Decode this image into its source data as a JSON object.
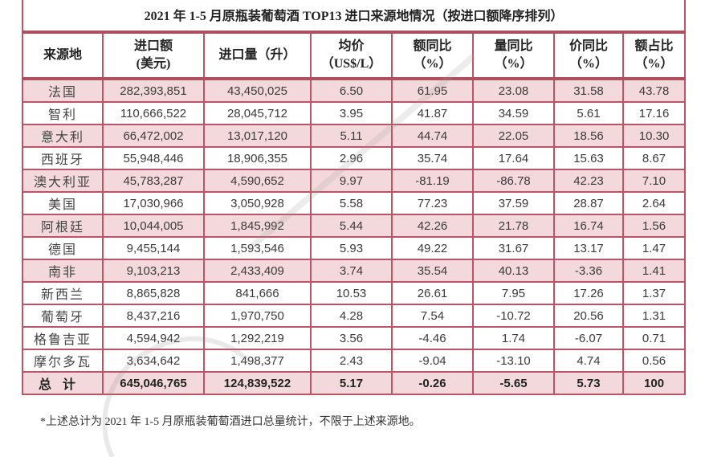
{
  "table": {
    "title": "2021 年 1-5 月原瓶装葡萄酒 TOP13 进口来源地情况（按进口额降序排列）",
    "headers": [
      {
        "line1": "来源地",
        "line2": ""
      },
      {
        "line1": "进口额",
        "line2": "(美元)"
      },
      {
        "line1": "进口量（升）",
        "line2": ""
      },
      {
        "line1": "均价",
        "line2": "（US$/L）"
      },
      {
        "line1": "额同比",
        "line2": "（%）"
      },
      {
        "line1": "量同比",
        "line2": "（%）"
      },
      {
        "line1": "价同比",
        "line2": "（%）"
      },
      {
        "line1": "额占比",
        "line2": "（%）"
      }
    ],
    "rows": [
      {
        "source": "法国",
        "value_usd": "282,393,851",
        "volume_l": "43,450,025",
        "avg_price": "6.50",
        "value_yoy": "61.95",
        "volume_yoy": "23.08",
        "price_yoy": "31.58",
        "value_share": "43.78",
        "shade": "pink"
      },
      {
        "source": "智利",
        "value_usd": "110,666,522",
        "volume_l": "28,045,712",
        "avg_price": "3.95",
        "value_yoy": "41.87",
        "volume_yoy": "34.59",
        "price_yoy": "5.61",
        "value_share": "17.16",
        "shade": "white"
      },
      {
        "source": "意大利",
        "value_usd": "66,472,002",
        "volume_l": "13,017,120",
        "avg_price": "5.11",
        "value_yoy": "44.74",
        "volume_yoy": "22.05",
        "price_yoy": "18.56",
        "value_share": "10.30",
        "shade": "pink"
      },
      {
        "source": "西班牙",
        "value_usd": "55,948,446",
        "volume_l": "18,906,355",
        "avg_price": "2.96",
        "value_yoy": "35.74",
        "volume_yoy": "17.64",
        "price_yoy": "15.63",
        "value_share": "8.67",
        "shade": "white"
      },
      {
        "source": "澳大利亚",
        "value_usd": "45,783,287",
        "volume_l": "4,590,652",
        "avg_price": "9.97",
        "value_yoy": "-81.19",
        "volume_yoy": "-86.78",
        "price_yoy": "42.23",
        "value_share": "7.10",
        "shade": "pink"
      },
      {
        "source": "美国",
        "value_usd": "17,030,966",
        "volume_l": "3,050,928",
        "avg_price": "5.58",
        "value_yoy": "77.23",
        "volume_yoy": "37.59",
        "price_yoy": "28.87",
        "value_share": "2.64",
        "shade": "white"
      },
      {
        "source": "阿根廷",
        "value_usd": "10,044,005",
        "volume_l": "1,845,992",
        "avg_price": "5.44",
        "value_yoy": "42.26",
        "volume_yoy": "21.78",
        "price_yoy": "16.74",
        "value_share": "1.56",
        "shade": "pink"
      },
      {
        "source": "德国",
        "value_usd": "9,455,144",
        "volume_l": "1,593,546",
        "avg_price": "5.93",
        "value_yoy": "49.22",
        "volume_yoy": "31.67",
        "price_yoy": "13.17",
        "value_share": "1.47",
        "shade": "white"
      },
      {
        "source": "南非",
        "value_usd": "9,103,213",
        "volume_l": "2,433,409",
        "avg_price": "3.74",
        "value_yoy": "35.54",
        "volume_yoy": "40.13",
        "price_yoy": "-3.36",
        "value_share": "1.41",
        "shade": "pink"
      },
      {
        "source": "新西兰",
        "value_usd": "8,865,828",
        "volume_l": "841,666",
        "avg_price": "10.53",
        "value_yoy": "26.61",
        "volume_yoy": "7.95",
        "price_yoy": "17.26",
        "value_share": "1.37",
        "shade": "white"
      },
      {
        "source": "葡萄牙",
        "value_usd": "8,437,216",
        "volume_l": "1,970,750",
        "avg_price": "4.28",
        "value_yoy": "7.54",
        "volume_yoy": "-10.72",
        "price_yoy": "20.56",
        "value_share": "1.31",
        "shade": "white"
      },
      {
        "source": "格鲁吉亚",
        "value_usd": "4,594,942",
        "volume_l": "1,292,219",
        "avg_price": "3.56",
        "value_yoy": "-4.46",
        "volume_yoy": "1.74",
        "price_yoy": "-6.07",
        "value_share": "0.71",
        "shade": "white"
      },
      {
        "source": "摩尔多瓦",
        "value_usd": "3,634,642",
        "volume_l": "1,498,377",
        "avg_price": "2.43",
        "value_yoy": "-9.04",
        "volume_yoy": "-13.10",
        "price_yoy": "4.74",
        "value_share": "0.56",
        "shade": "white"
      }
    ],
    "total": {
      "source": "总计",
      "value_usd": "645,046,765",
      "volume_l": "124,839,522",
      "avg_price": "5.17",
      "value_yoy": "-0.26",
      "volume_yoy": "-5.65",
      "price_yoy": "5.73",
      "value_share": "100"
    }
  },
  "footnote": "*上述总计为 2021 年 1-5 月原瓶装葡萄酒进口总量统计，不限于上述来源地。",
  "colors": {
    "border": "#b95565",
    "row_pink": "#f4d9dc",
    "row_white": "#ffffff"
  }
}
